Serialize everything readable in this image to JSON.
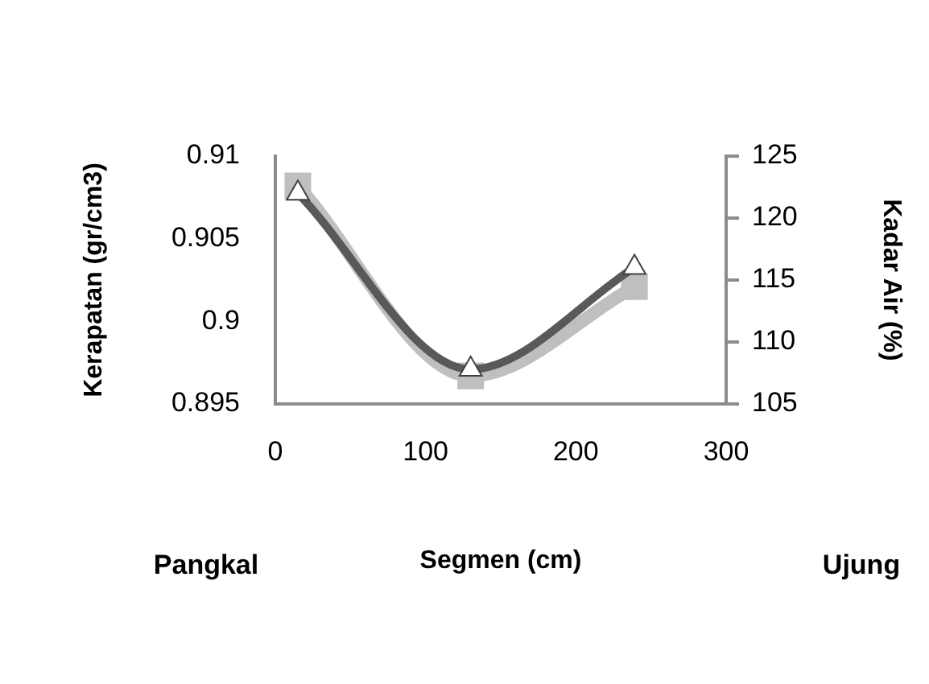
{
  "chart_data": {
    "type": "line",
    "xlabel": "Segmen (cm)",
    "ylabel": "Kerapatan (gr/cm3)",
    "y2label": "Kadar Air (%)",
    "xlim": [
      0,
      300
    ],
    "xticks": [
      0,
      100,
      200,
      300
    ],
    "ylim": [
      0.895,
      0.91
    ],
    "yticks": [
      0.895,
      0.9,
      0.905,
      0.91
    ],
    "y2lim": [
      105,
      125
    ],
    "y2ticks": [
      105,
      110,
      115,
      120,
      125
    ],
    "series": [
      {
        "color": "#bfbfbf",
        "x": [
          15,
          130,
          239
        ],
        "values": [
          0.9082,
          0.8967,
          0.9021
        ],
        "marker": "square"
      },
      {
        "color": "#595959",
        "x": [
          15,
          130,
          239
        ],
        "values": [
          122,
          107.8,
          116
        ],
        "axis": "y2",
        "marker": "triangle"
      }
    ],
    "annotations": [
      "Pangkal",
      "Ujung"
    ],
    "grid": false,
    "legend": false
  }
}
